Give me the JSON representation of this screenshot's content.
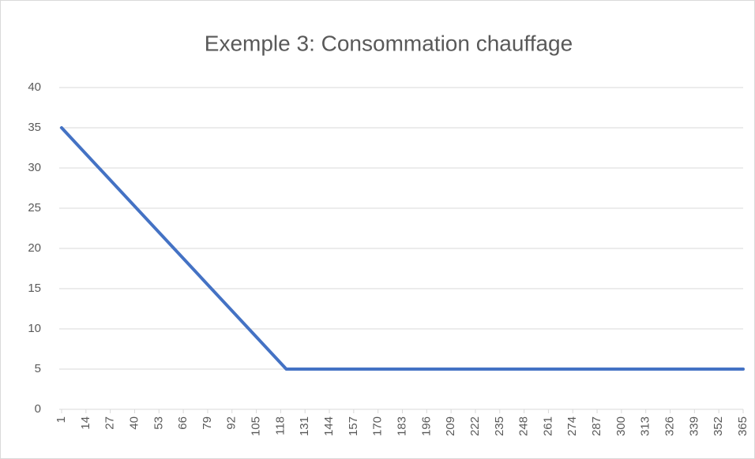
{
  "chart_data": {
    "type": "line",
    "title": "Exemple 3: Consommation chauffage",
    "x": [
      1,
      121,
      365
    ],
    "series": [
      {
        "name": "Consommation",
        "color": "#4472c4",
        "values": [
          35,
          5,
          5
        ]
      }
    ],
    "xlim": [
      1,
      365
    ],
    "xticks": [
      1,
      14,
      27,
      40,
      53,
      66,
      79,
      92,
      105,
      118,
      131,
      144,
      157,
      170,
      183,
      196,
      209,
      222,
      235,
      248,
      261,
      274,
      287,
      300,
      313,
      326,
      339,
      352,
      365
    ],
    "ylim": [
      0,
      40
    ],
    "yticks": [
      0,
      5,
      10,
      15,
      20,
      25,
      30,
      35,
      40
    ],
    "grid": true
  }
}
